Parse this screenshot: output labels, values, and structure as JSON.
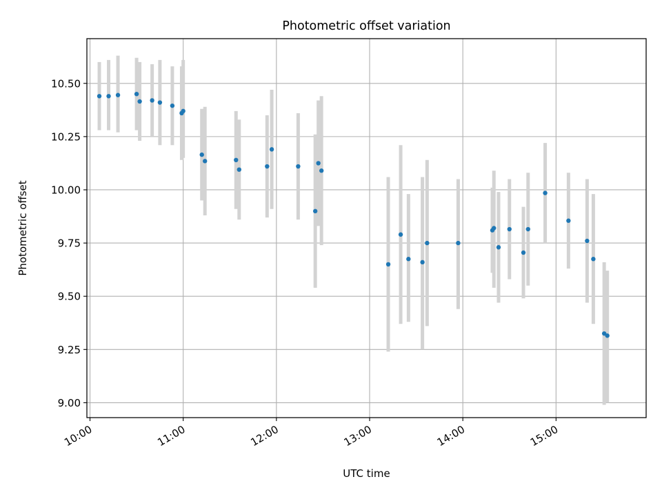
{
  "chart_data": {
    "type": "scatter",
    "title": "Photometric offset variation",
    "xlabel": "UTC time",
    "ylabel": "Photometric offset",
    "x_axis_type": "time",
    "xlim": [
      "09:58",
      "15:58"
    ],
    "ylim": [
      8.93,
      10.71
    ],
    "x_ticks": [
      "10:00",
      "11:00",
      "12:00",
      "13:00",
      "14:00",
      "15:00"
    ],
    "y_ticks": [
      9.0,
      9.25,
      9.5,
      9.75,
      10.0,
      10.25,
      10.5
    ],
    "y_tick_labels": [
      "9.00",
      "9.25",
      "9.50",
      "9.75",
      "10.00",
      "10.25",
      "10.50"
    ],
    "grid": true,
    "marker_color": "#1f77b4",
    "errorbar_color": "#d3d3d3",
    "points": [
      {
        "x": "10:06",
        "y": 10.44,
        "low": 10.28,
        "high": 10.6
      },
      {
        "x": "10:12",
        "y": 10.44,
        "low": 10.28,
        "high": 10.61
      },
      {
        "x": "10:18",
        "y": 10.445,
        "low": 10.27,
        "high": 10.63
      },
      {
        "x": "10:30",
        "y": 10.45,
        "low": 10.28,
        "high": 10.62
      },
      {
        "x": "10:32",
        "y": 10.415,
        "low": 10.23,
        "high": 10.6
      },
      {
        "x": "10:40",
        "y": 10.42,
        "low": 10.25,
        "high": 10.59
      },
      {
        "x": "10:45",
        "y": 10.41,
        "low": 10.21,
        "high": 10.61
      },
      {
        "x": "10:53",
        "y": 10.395,
        "low": 10.21,
        "high": 10.58
      },
      {
        "x": "10:59",
        "y": 10.36,
        "low": 10.14,
        "high": 10.58
      },
      {
        "x": "11:00",
        "y": 10.37,
        "low": 10.15,
        "high": 10.61
      },
      {
        "x": "11:12",
        "y": 10.165,
        "low": 9.95,
        "high": 10.38
      },
      {
        "x": "11:14",
        "y": 10.135,
        "low": 9.88,
        "high": 10.39
      },
      {
        "x": "11:34",
        "y": 10.14,
        "low": 9.91,
        "high": 10.37
      },
      {
        "x": "11:36",
        "y": 10.095,
        "low": 9.86,
        "high": 10.33
      },
      {
        "x": "11:54",
        "y": 10.11,
        "low": 9.87,
        "high": 10.35
      },
      {
        "x": "11:57",
        "y": 10.19,
        "low": 9.91,
        "high": 10.47
      },
      {
        "x": "12:14",
        "y": 10.11,
        "low": 9.86,
        "high": 10.36
      },
      {
        "x": "12:25",
        "y": 9.9,
        "low": 9.54,
        "high": 10.26
      },
      {
        "x": "12:27",
        "y": 10.125,
        "low": 9.83,
        "high": 10.42
      },
      {
        "x": "12:29",
        "y": 10.09,
        "low": 9.74,
        "high": 10.44
      },
      {
        "x": "13:12",
        "y": 9.65,
        "low": 9.24,
        "high": 10.06
      },
      {
        "x": "13:20",
        "y": 9.79,
        "low": 9.37,
        "high": 10.21
      },
      {
        "x": "13:25",
        "y": 9.675,
        "low": 9.38,
        "high": 9.98
      },
      {
        "x": "13:34",
        "y": 9.66,
        "low": 9.25,
        "high": 10.06
      },
      {
        "x": "13:37",
        "y": 9.75,
        "low": 9.36,
        "high": 10.14
      },
      {
        "x": "13:57",
        "y": 9.75,
        "low": 9.44,
        "high": 10.05
      },
      {
        "x": "14:19",
        "y": 9.81,
        "low": 9.61,
        "high": 10.01
      },
      {
        "x": "14:20",
        "y": 9.82,
        "low": 9.54,
        "high": 10.09
      },
      {
        "x": "14:23",
        "y": 9.73,
        "low": 9.47,
        "high": 9.99
      },
      {
        "x": "14:30",
        "y": 9.815,
        "low": 9.58,
        "high": 10.05
      },
      {
        "x": "14:39",
        "y": 9.705,
        "low": 9.49,
        "high": 9.92
      },
      {
        "x": "14:42",
        "y": 9.815,
        "low": 9.55,
        "high": 10.08
      },
      {
        "x": "14:53",
        "y": 9.985,
        "low": 9.75,
        "high": 10.22
      },
      {
        "x": "15:08",
        "y": 9.855,
        "low": 9.63,
        "high": 10.08
      },
      {
        "x": "15:20",
        "y": 9.76,
        "low": 9.47,
        "high": 10.05
      },
      {
        "x": "15:24",
        "y": 9.675,
        "low": 9.37,
        "high": 9.98
      },
      {
        "x": "15:31",
        "y": 9.325,
        "low": 8.99,
        "high": 9.66
      },
      {
        "x": "15:33",
        "y": 9.315,
        "low": 9.0,
        "high": 9.62
      }
    ]
  }
}
